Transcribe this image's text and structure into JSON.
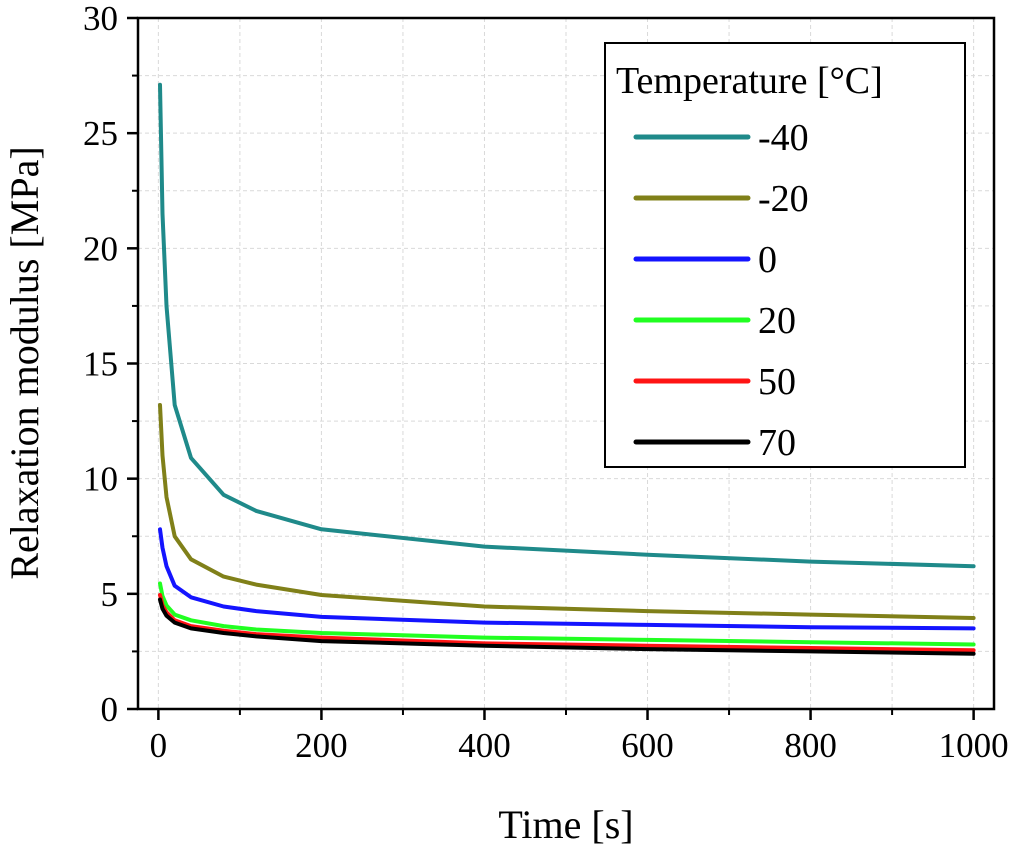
{
  "chart_data": {
    "type": "line",
    "title": "",
    "xlabel": "Time [s]",
    "ylabel": "Relaxation modulus [MPa]",
    "xlim": [
      -25,
      1025
    ],
    "ylim": [
      0,
      30
    ],
    "xticks": [
      0,
      200,
      400,
      600,
      800,
      1000
    ],
    "yticks": [
      0,
      5,
      10,
      15,
      20,
      25,
      30
    ],
    "x_minor_step": 100,
    "y_minor_step": 2.5,
    "grid": true,
    "legend": {
      "title": "Temperature [°C]",
      "position": "top-right"
    },
    "x": [
      2,
      5,
      10,
      20,
      40,
      80,
      120,
      200,
      400,
      600,
      800,
      1000
    ],
    "series": [
      {
        "name": "-40",
        "color": "#1f8a8a",
        "values": [
          27.1,
          21.5,
          17.5,
          13.2,
          10.9,
          9.3,
          8.6,
          7.8,
          7.05,
          6.7,
          6.4,
          6.2
        ]
      },
      {
        "name": "-20",
        "color": "#808019",
        "values": [
          13.2,
          11.0,
          9.2,
          7.5,
          6.5,
          5.75,
          5.4,
          4.95,
          4.45,
          4.25,
          4.1,
          3.95
        ]
      },
      {
        "name": "0",
        "color": "#1414ff",
        "values": [
          7.8,
          7.0,
          6.2,
          5.35,
          4.85,
          4.45,
          4.25,
          4.0,
          3.75,
          3.65,
          3.55,
          3.5
        ]
      },
      {
        "name": "20",
        "color": "#21ff21",
        "values": [
          5.45,
          4.9,
          4.5,
          4.1,
          3.85,
          3.6,
          3.45,
          3.3,
          3.1,
          3.0,
          2.9,
          2.8
        ]
      },
      {
        "name": "50",
        "color": "#ff1414",
        "values": [
          4.95,
          4.5,
          4.2,
          3.85,
          3.6,
          3.4,
          3.25,
          3.1,
          2.85,
          2.75,
          2.65,
          2.55
        ]
      },
      {
        "name": "70",
        "color": "#000000",
        "values": [
          4.75,
          4.35,
          4.05,
          3.75,
          3.5,
          3.3,
          3.15,
          2.95,
          2.75,
          2.6,
          2.5,
          2.4
        ]
      }
    ]
  }
}
